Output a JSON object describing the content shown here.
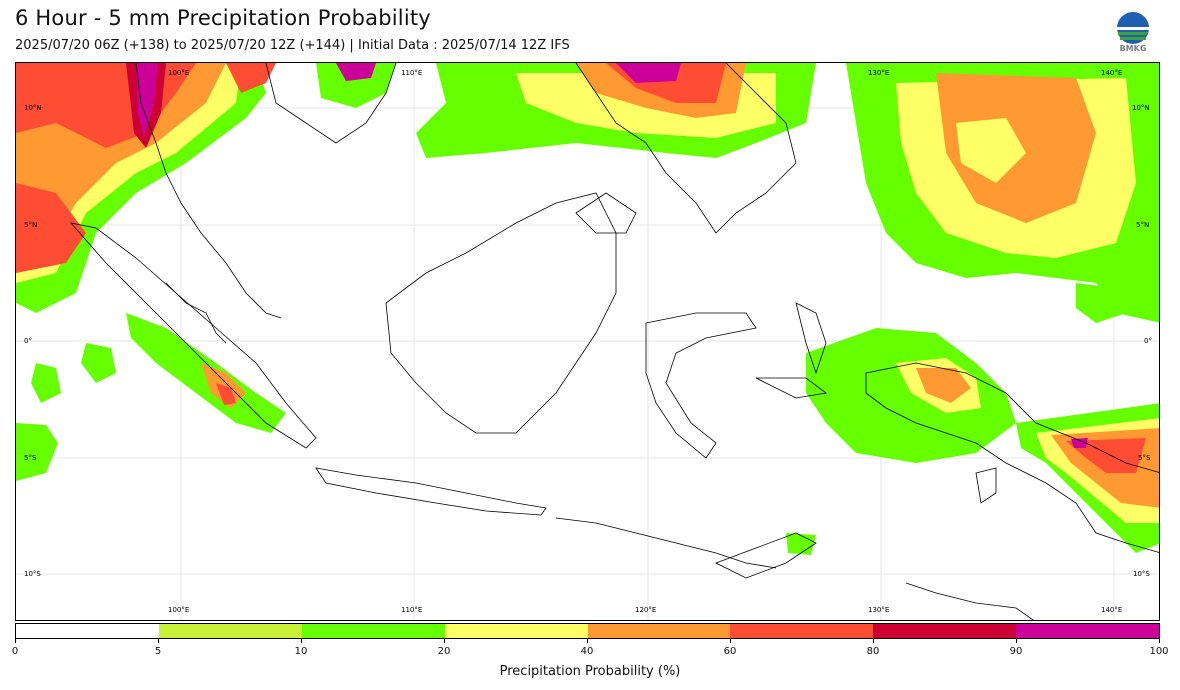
{
  "header": {
    "title": "6 Hour - 5 mm Precipitation Probability",
    "subtitle": "2025/07/20 06Z (+138) to 2025/07/20 12Z (+144) | Initial Data : 2025/07/14 12Z IFS"
  },
  "logo": {
    "text": "BMKG"
  },
  "map": {
    "lon_labels_top": [
      "100°E",
      "110°E",
      "130°E",
      "140°E"
    ],
    "lon_labels_bottom": [
      "100°E",
      "110°E",
      "120°E",
      "130°E",
      "140°E"
    ],
    "lat_labels_left": [
      "10°N",
      "5°N",
      "0°",
      "5°S",
      "10°S"
    ],
    "lat_labels_right": [
      "10°N",
      "5°N",
      "0°",
      "5°S",
      "10°S"
    ]
  },
  "colorbar": {
    "label": "Precipitation Probability (%)",
    "ticks": [
      "0",
      "5",
      "10",
      "20",
      "40",
      "60",
      "80",
      "90",
      "100"
    ],
    "colors": [
      "#ffffff",
      "#c8f034",
      "#66ff00",
      "#ffff66",
      "#ff9a33",
      "#ff4d33",
      "#cc0033",
      "#cc0099"
    ]
  }
}
